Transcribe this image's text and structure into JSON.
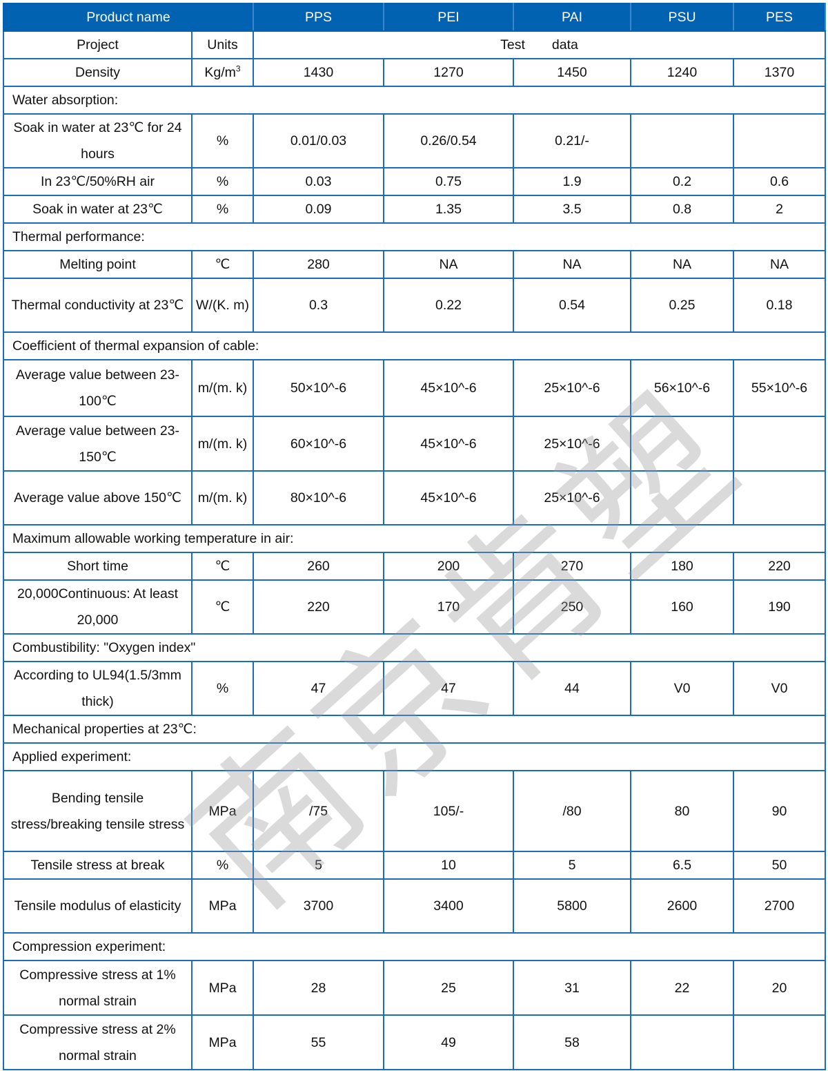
{
  "watermark": "南京肯塑",
  "colors": {
    "header_bg": "#0062b1",
    "border": "#1a6cbf"
  },
  "header": [
    "Product name",
    "PPS",
    "PEI",
    "PAI",
    "PSU",
    "PES"
  ],
  "rows": [
    {
      "type": "merged",
      "label": "Project",
      "unit": "Units",
      "text": "Test　　data"
    },
    {
      "type": "data",
      "label": "Density",
      "unit": "Kg/m",
      "unit_sup": "3",
      "values": [
        "1430",
        "1270",
        "1450",
        "1240",
        "1370"
      ]
    },
    {
      "type": "section",
      "label": "Water absorption:"
    },
    {
      "type": "data",
      "label": "Soak in water at 23℃ for 24 hours",
      "unit": "%",
      "values": [
        "0.01/0.03",
        "0.26/0.54",
        "0.21/-",
        "",
        ""
      ]
    },
    {
      "type": "data",
      "label": "In 23℃/50%RH air",
      "unit": "%",
      "values": [
        "0.03",
        "0.75",
        "1.9",
        "0.2",
        "0.6"
      ]
    },
    {
      "type": "data",
      "label": "Soak in water at 23℃",
      "unit": "%",
      "values": [
        "0.09",
        "1.35",
        "3.5",
        "0.8",
        "2"
      ]
    },
    {
      "type": "section",
      "label": "Thermal performance:"
    },
    {
      "type": "data",
      "label": "Melting point",
      "unit": "℃",
      "values": [
        "280",
        "NA",
        "NA",
        "NA",
        "NA"
      ]
    },
    {
      "type": "data",
      "label": "Thermal conductivity at 23℃",
      "unit": "W/(K. m)",
      "values": [
        "0.3",
        "0.22",
        "0.54",
        "0.25",
        "0.18"
      ]
    },
    {
      "type": "section",
      "label": "Coefficient of thermal expansion of cable:"
    },
    {
      "type": "data",
      "label": "Average value between 23-100℃",
      "unit": "m/(m. k)",
      "values": [
        "50×10^-6",
        "45×10^-6",
        "25×10^-6",
        "56×10^-6",
        "55×10^-6"
      ]
    },
    {
      "type": "data",
      "label": "Average value between 23-150℃",
      "unit": "m/(m. k)",
      "values": [
        "60×10^-6",
        "45×10^-6",
        "25×10^-6",
        "",
        ""
      ]
    },
    {
      "type": "data",
      "label": "Average value above 150℃",
      "unit": "m/(m. k)",
      "values": [
        "80×10^-6",
        "45×10^-6",
        "25×10^-6",
        "",
        ""
      ]
    },
    {
      "type": "section",
      "label": "Maximum allowable working temperature in air:"
    },
    {
      "type": "data",
      "label": "Short time",
      "unit": "℃",
      "values": [
        "260",
        "200",
        "270",
        "180",
        "220"
      ]
    },
    {
      "type": "data",
      "label": "20,000Continuous: At least 20,000",
      "unit": "℃",
      "values": [
        "220",
        "170",
        "250",
        "160",
        "190"
      ]
    },
    {
      "type": "section",
      "label": "Combustibility: \"Oxygen index\""
    },
    {
      "type": "data",
      "label": "According to UL94(1.5/3mm thick)",
      "unit": "%",
      "values": [
        "47",
        "47",
        "44",
        "V0",
        "V0"
      ]
    },
    {
      "type": "section",
      "label": "Mechanical properties at 23℃:"
    },
    {
      "type": "section",
      "label": "Applied experiment:"
    },
    {
      "type": "data",
      "label": "Bending tensile stress/breaking tensile stress",
      "unit": "MPa",
      "values": [
        "/75",
        "105/-",
        "/80",
        "80",
        "90"
      ]
    },
    {
      "type": "data",
      "label": "Tensile stress at break",
      "unit": "%",
      "values": [
        "5",
        "10",
        "5",
        "6.5",
        "50"
      ]
    },
    {
      "type": "data",
      "label": "Tensile modulus of elasticity",
      "unit": "MPa",
      "values": [
        "3700",
        "3400",
        "5800",
        "2600",
        "2700"
      ]
    },
    {
      "type": "section",
      "label": "Compression experiment:"
    },
    {
      "type": "data",
      "label": "Compressive stress at 1% normal strain",
      "unit": "MPa",
      "values": [
        "28",
        "25",
        "31",
        "22",
        "20"
      ]
    },
    {
      "type": "data",
      "label": "Compressive stress at 2% normal strain",
      "unit": "MPa",
      "values": [
        "55",
        "49",
        "58",
        "",
        ""
      ]
    }
  ]
}
